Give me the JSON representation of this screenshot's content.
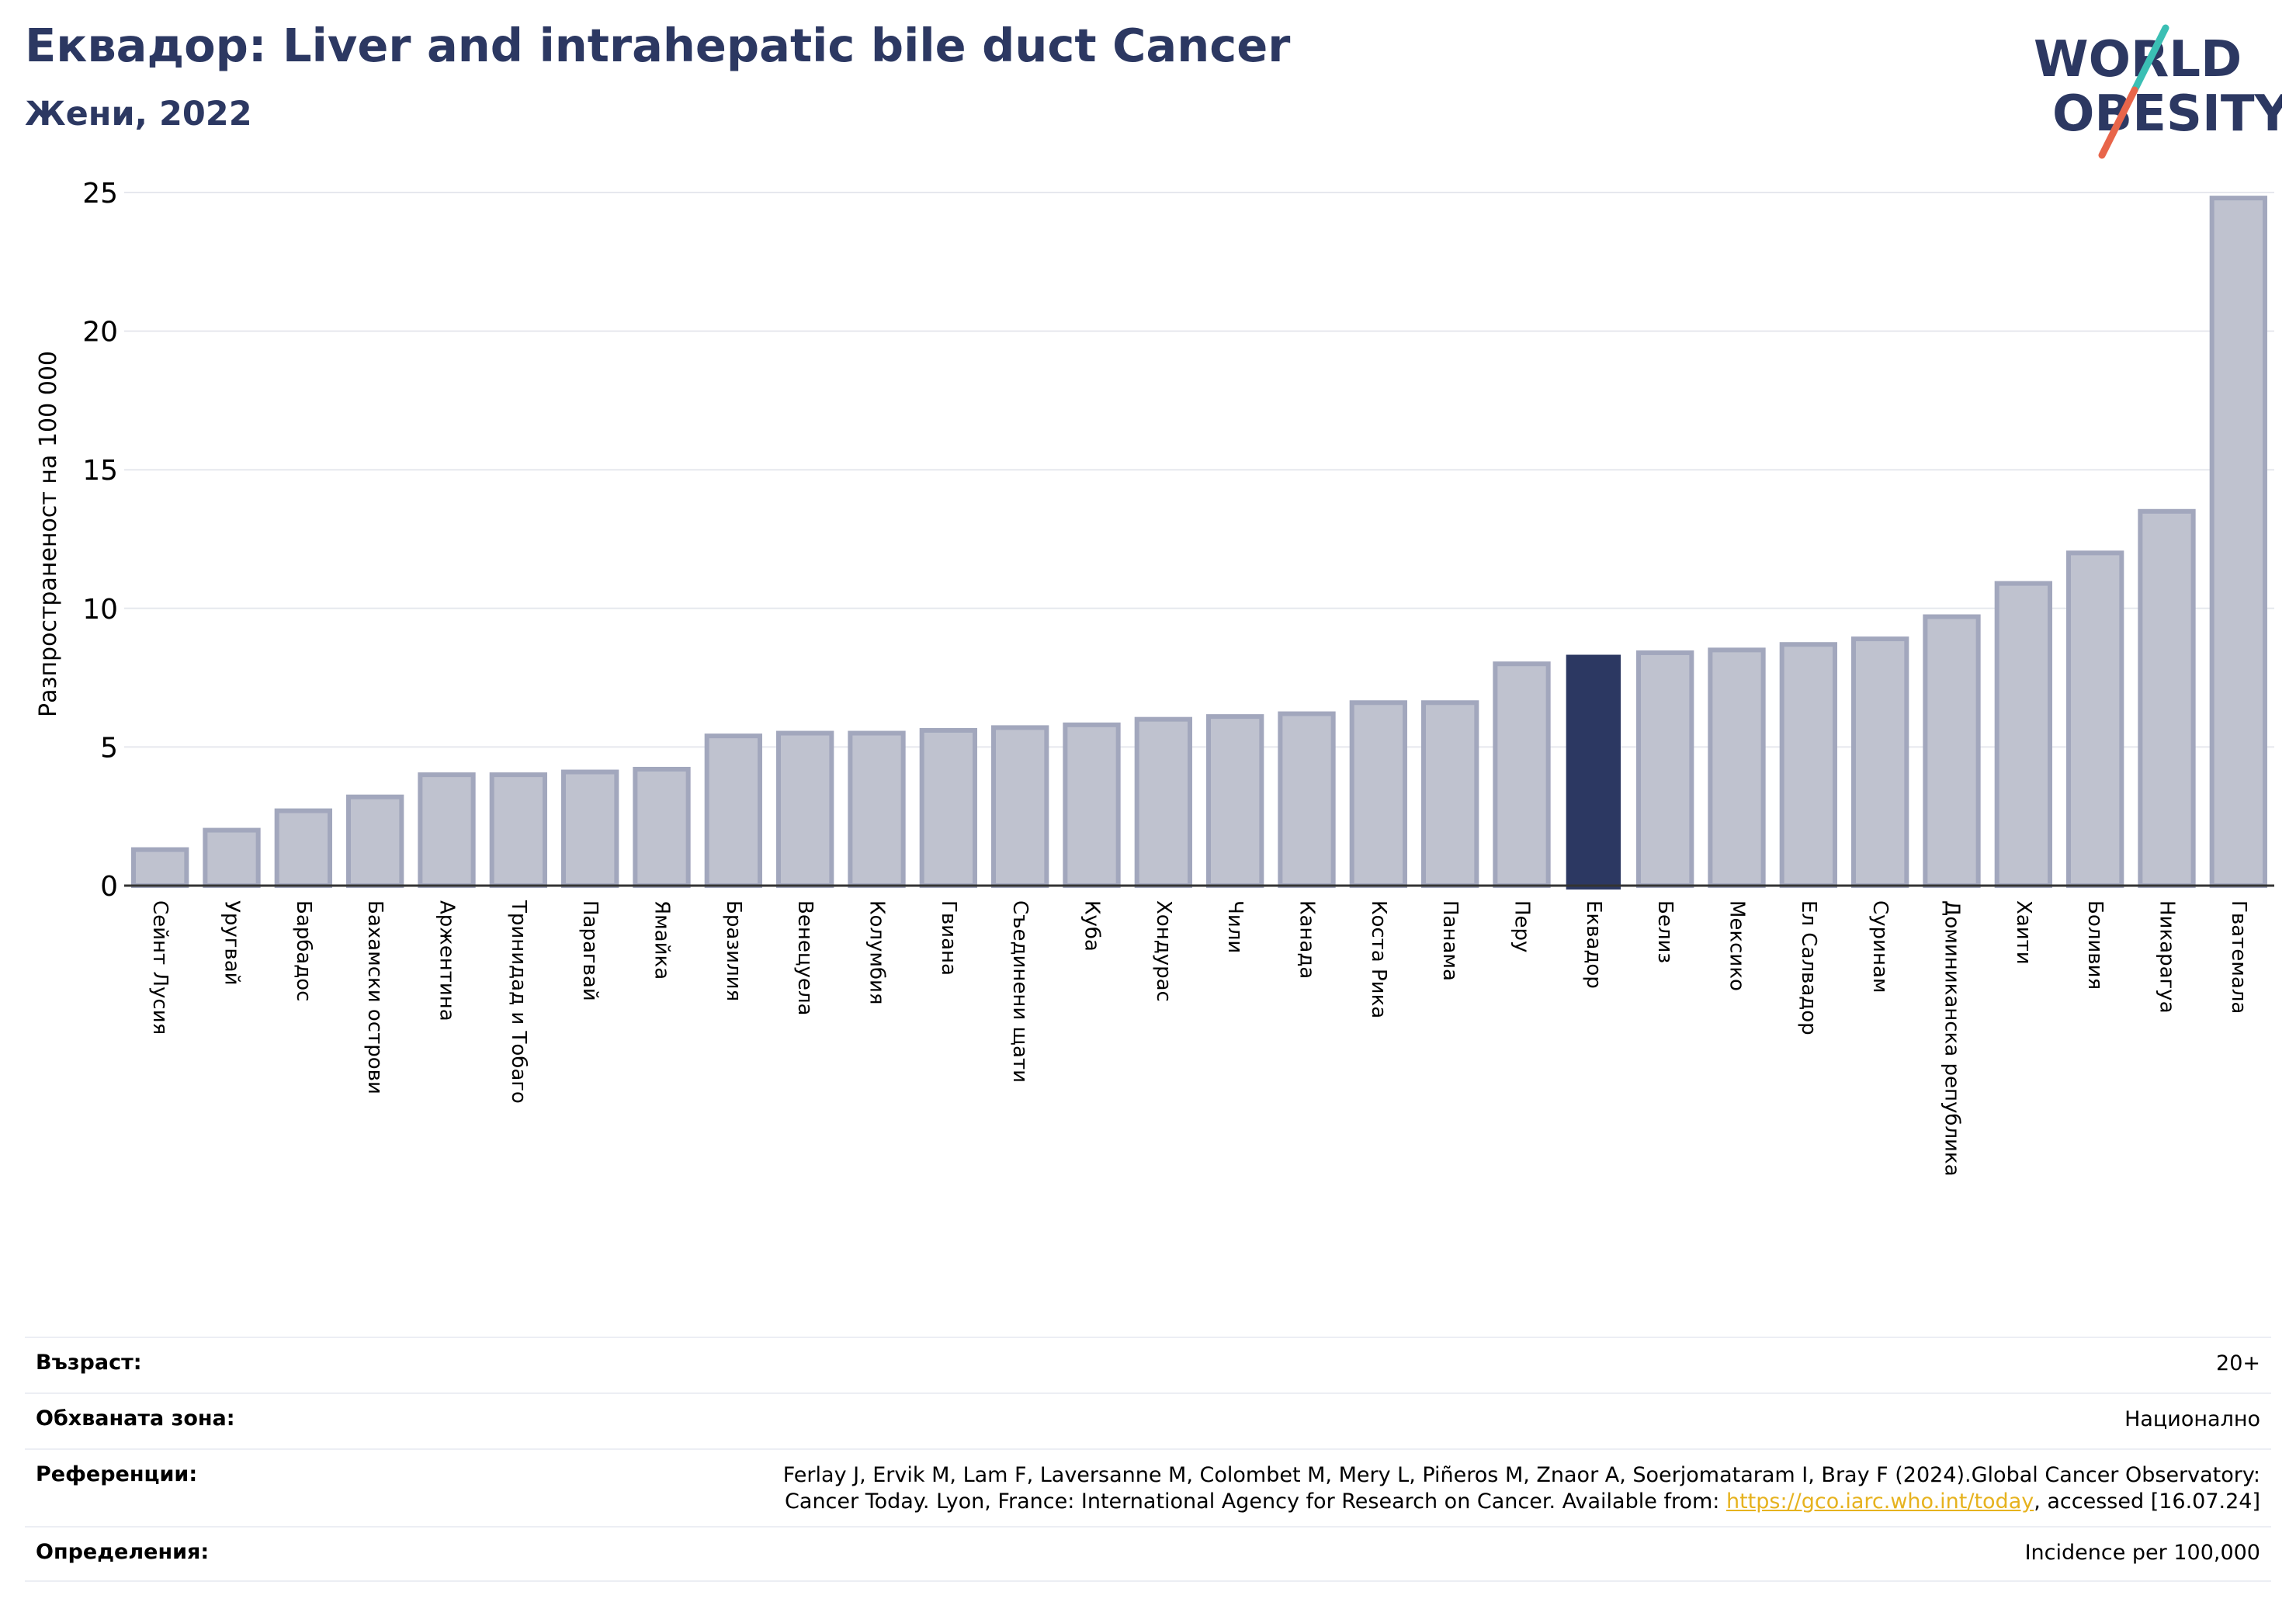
{
  "header": {
    "title": "Еквадор: Liver and intrahepatic bile duct Cancer",
    "subtitle": "Жени, 2022"
  },
  "logo": {
    "line1": "WORLD",
    "line2": "OBESITY",
    "text_color": "#2c3862",
    "slash_colors": [
      "#3bbfb4",
      "#e8654a"
    ]
  },
  "chart_data": {
    "type": "bar",
    "ylabel": "Разпространеност  на 100 000",
    "ylim": [
      0,
      25
    ],
    "yticks": [
      0,
      5,
      10,
      15,
      20,
      25
    ],
    "grid": true,
    "highlight": "Еквадор",
    "highlight_color": "#2c3862",
    "bar_color": "#bfc2cf",
    "bar_edge_color": "#a2a7bd",
    "categories": [
      "Сейнт Лусия",
      "Уругвай",
      "Барбадос",
      "Бахамски острови",
      "Аржентина",
      "Тринидад и Тобаго",
      "Парагвай",
      "Ямайка",
      "Бразилия",
      "Венецуела",
      "Колумбия",
      "Гвиана",
      "Съединени щати",
      "Куба",
      "Хондурас",
      "Чили",
      "Канада",
      "Коста Рика",
      "Панама",
      "Перу",
      "Еквадор",
      "Белиз",
      "Мексико",
      "Ел Салвадор",
      "Суринам",
      "Доминиканска република",
      "Хаити",
      "Боливия",
      "Никарагуа",
      "Гватемала"
    ],
    "values": [
      1.3,
      2.0,
      2.7,
      3.2,
      4.0,
      4.0,
      4.1,
      4.2,
      5.4,
      5.5,
      5.5,
      5.6,
      5.7,
      5.8,
      6.0,
      6.1,
      6.2,
      6.6,
      6.6,
      8.0,
      8.3,
      8.4,
      8.5,
      8.7,
      8.9,
      9.7,
      10.9,
      12.0,
      13.5,
      24.8
    ]
  },
  "info": {
    "age_label": "Възраст:",
    "age_value": "20+",
    "area_label": "Обхваната зона:",
    "area_value": "Национално",
    "ref_label": "Референции:",
    "ref_line1": "Ferlay J, Ervik M, Lam F, Laversanne M, Colombet M, Mery L, Piñeros M, Znaor A, Soerjomataram I, Bray F (2024).Global Cancer Observatory:",
    "ref_line2_pre": "Cancer Today. Lyon, France: International Agency for Research on Cancer. Available from: ",
    "ref_link": "https://gco.iarc.who.int/today",
    "ref_line2_post": ", accessed [16.07.24]",
    "def_label": "Определения:",
    "def_value": "Incidence per 100,000"
  }
}
